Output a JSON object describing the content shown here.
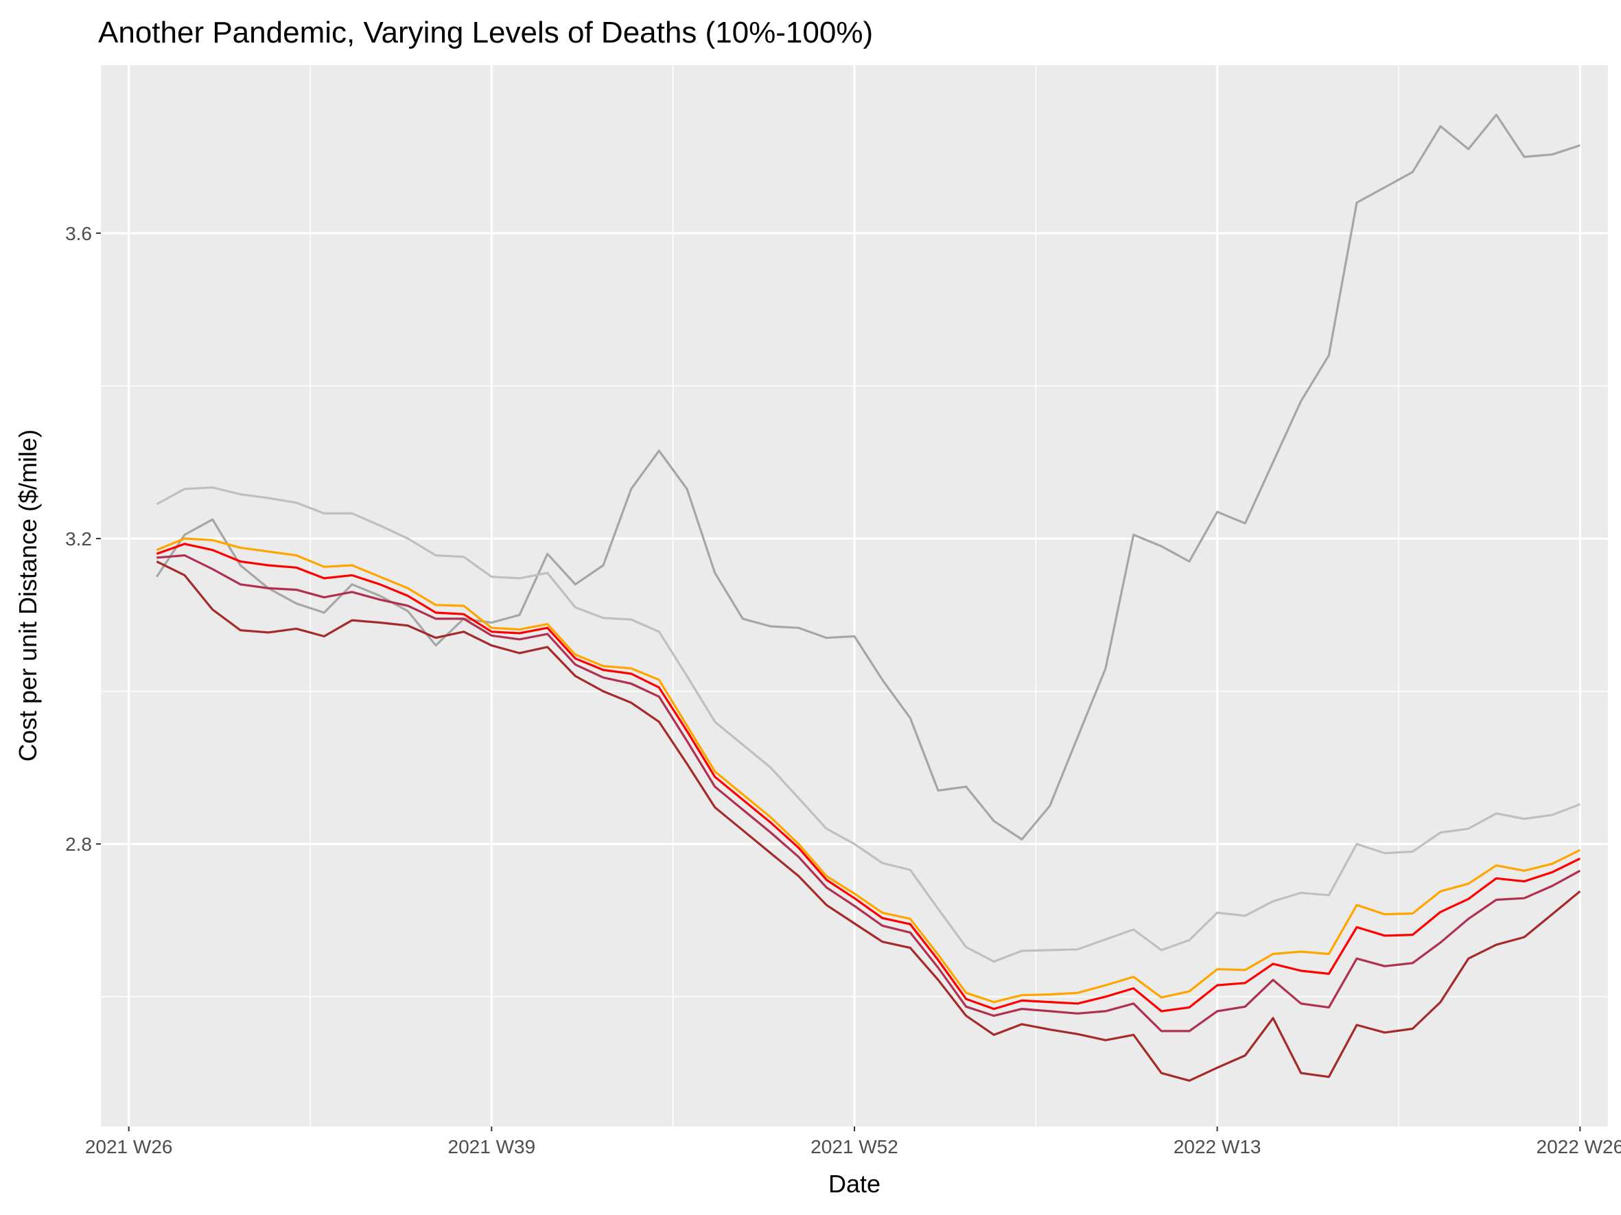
{
  "chart_data": {
    "type": "line",
    "title": "Another Pandemic, Varying Levels of Deaths (10%-100%)",
    "xlabel": "Date",
    "ylabel": "Cost per unit Distance ($/mile)",
    "x_axis": {
      "unit": "week offset from 2021 W26",
      "range": [
        -1,
        53
      ],
      "major_ticks": [
        {
          "value": 0,
          "label": "2021 W26"
        },
        {
          "value": 13,
          "label": "2021 W39"
        },
        {
          "value": 26,
          "label": "2021 W52"
        },
        {
          "value": 39,
          "label": "2022 W13"
        },
        {
          "value": 52,
          "label": "2022 W26"
        }
      ],
      "minor_ticks": [
        6.5,
        19.5,
        32.5,
        45.5
      ]
    },
    "y_axis": {
      "range": [
        2.43,
        3.82
      ],
      "major_ticks": [
        2.8,
        3.2,
        3.6
      ],
      "tick_labels": [
        "2.8",
        "3.2",
        "3.6"
      ],
      "minor_ticks": [
        2.6,
        3.0,
        3.4
      ]
    },
    "grid": true,
    "background": "#EBEBEB",
    "grid_color": "#FFFFFF",
    "x": [
      1,
      2,
      3,
      4,
      5,
      6,
      7,
      8,
      9,
      10,
      11,
      12,
      13,
      14,
      15,
      16,
      17,
      18,
      19,
      20,
      21,
      22,
      23,
      24,
      25,
      26,
      27,
      28,
      29,
      30,
      31,
      32,
      33,
      34,
      35,
      36,
      37,
      38,
      39,
      40,
      41,
      42,
      43,
      44,
      45,
      46,
      47,
      48,
      49,
      50,
      51,
      52
    ],
    "series": [
      {
        "color": "#A6A6A6",
        "values": [
          3.15,
          3.205,
          3.225,
          3.165,
          3.135,
          3.115,
          3.103,
          3.14,
          3.125,
          3.105,
          3.06,
          3.095,
          3.09,
          3.1,
          3.18,
          3.14,
          3.165,
          3.265,
          3.315,
          3.265,
          3.155,
          3.095,
          3.085,
          3.083,
          3.07,
          3.072,
          3.015,
          2.965,
          2.87,
          2.875,
          2.83,
          2.806,
          2.85,
          2.94,
          3.03,
          3.205,
          3.19,
          3.17,
          3.235,
          3.22,
          3.3,
          3.38,
          3.44,
          3.64,
          3.66,
          3.68,
          3.74,
          3.71,
          3.755,
          3.7,
          3.703,
          3.715
        ]
      },
      {
        "color": "#BFBFBF",
        "values": [
          3.245,
          3.265,
          3.267,
          3.258,
          3.253,
          3.247,
          3.233,
          3.233,
          3.217,
          3.2,
          3.178,
          3.176,
          3.15,
          3.148,
          3.155,
          3.11,
          3.096,
          3.094,
          3.078,
          3.02,
          2.96,
          2.93,
          2.9,
          2.86,
          2.82,
          2.8,
          2.775,
          2.766,
          2.715,
          2.665,
          2.646,
          2.66,
          2.661,
          2.662,
          2.675,
          2.688,
          2.661,
          2.674,
          2.71,
          2.706,
          2.725,
          2.736,
          2.733,
          2.8,
          2.788,
          2.79,
          2.815,
          2.82,
          2.84,
          2.833,
          2.838,
          2.852
        ]
      },
      {
        "color": "#FFA500",
        "values": [
          3.185,
          3.2,
          3.198,
          3.188,
          3.183,
          3.178,
          3.163,
          3.165,
          3.15,
          3.135,
          3.113,
          3.112,
          3.083,
          3.081,
          3.088,
          3.048,
          3.033,
          3.03,
          3.015,
          2.955,
          2.895,
          2.865,
          2.835,
          2.8,
          2.758,
          2.735,
          2.71,
          2.702,
          2.655,
          2.605,
          2.593,
          2.602,
          2.603,
          2.605,
          2.615,
          2.626,
          2.599,
          2.607,
          2.636,
          2.635,
          2.656,
          2.659,
          2.656,
          2.72,
          2.708,
          2.709,
          2.738,
          2.748,
          2.772,
          2.765,
          2.774,
          2.792
        ]
      },
      {
        "color": "#FF0000",
        "values": [
          3.18,
          3.193,
          3.185,
          3.17,
          3.165,
          3.162,
          3.148,
          3.152,
          3.14,
          3.125,
          3.103,
          3.101,
          3.078,
          3.076,
          3.083,
          3.043,
          3.028,
          3.023,
          3.005,
          2.948,
          2.888,
          2.858,
          2.828,
          2.795,
          2.753,
          2.729,
          2.703,
          2.695,
          2.648,
          2.597,
          2.584,
          2.595,
          2.593,
          2.591,
          2.6,
          2.611,
          2.581,
          2.586,
          2.615,
          2.618,
          2.643,
          2.634,
          2.63,
          2.691,
          2.68,
          2.681,
          2.711,
          2.728,
          2.755,
          2.751,
          2.763,
          2.781
        ]
      },
      {
        "color": "#B03050",
        "values": [
          3.175,
          3.178,
          3.16,
          3.14,
          3.135,
          3.133,
          3.123,
          3.13,
          3.12,
          3.112,
          3.095,
          3.095,
          3.073,
          3.068,
          3.075,
          3.035,
          3.018,
          3.01,
          2.993,
          2.935,
          2.875,
          2.845,
          2.815,
          2.783,
          2.743,
          2.719,
          2.693,
          2.684,
          2.638,
          2.587,
          2.575,
          2.584,
          2.581,
          2.578,
          2.581,
          2.591,
          2.555,
          2.555,
          2.581,
          2.587,
          2.622,
          2.591,
          2.586,
          2.65,
          2.64,
          2.644,
          2.671,
          2.702,
          2.727,
          2.729,
          2.745,
          2.765
        ]
      },
      {
        "color": "#A52A2A",
        "values": [
          3.17,
          3.152,
          3.107,
          3.08,
          3.077,
          3.082,
          3.072,
          3.093,
          3.09,
          3.086,
          3.07,
          3.078,
          3.06,
          3.05,
          3.058,
          3.02,
          3.0,
          2.985,
          2.96,
          2.905,
          2.848,
          2.818,
          2.788,
          2.758,
          2.72,
          2.696,
          2.672,
          2.664,
          2.622,
          2.575,
          2.55,
          2.564,
          2.557,
          2.551,
          2.543,
          2.55,
          2.5,
          2.49,
          2.507,
          2.523,
          2.572,
          2.5,
          2.495,
          2.563,
          2.553,
          2.558,
          2.593,
          2.65,
          2.668,
          2.678,
          2.708,
          2.738
        ]
      }
    ]
  }
}
